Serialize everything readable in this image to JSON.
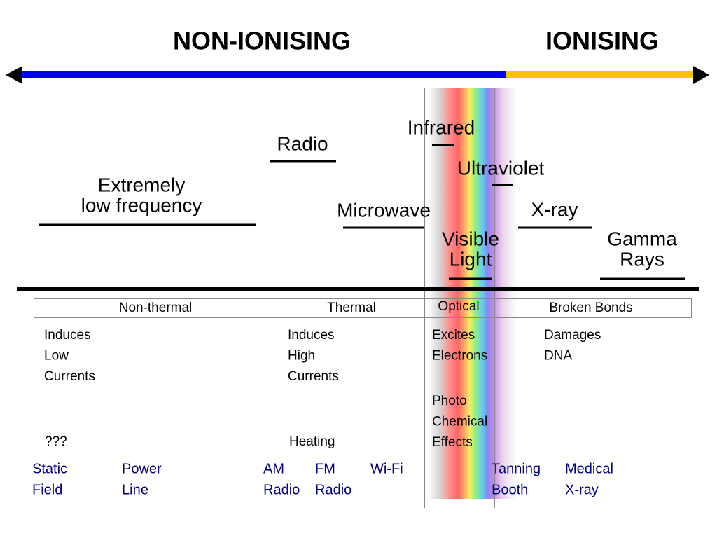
{
  "header": {
    "non_ionising": "NON-IONISING",
    "ionising": "IONISING"
  },
  "bands": [
    {
      "lines": [
        "Extremely",
        "low frequency"
      ]
    },
    {
      "lines": [
        "Radio"
      ]
    },
    {
      "lines": [
        "Infrared"
      ]
    },
    {
      "lines": [
        "Ultraviolet"
      ]
    },
    {
      "lines": [
        "Microwave"
      ]
    },
    {
      "lines": [
        "X-ray"
      ]
    },
    {
      "lines": [
        "Visible",
        "Light"
      ]
    },
    {
      "lines": [
        "Gamma",
        "Rays"
      ]
    }
  ],
  "effects": [
    "Non-thermal",
    "Thermal",
    "Optical",
    "Broken Bonds"
  ],
  "descriptions": [
    {
      "lines": [
        "Induces",
        "Low",
        "Currents"
      ]
    },
    {
      "lines": [
        "???"
      ]
    },
    {
      "lines": [
        "Induces",
        "High",
        "Currents"
      ]
    },
    {
      "lines": [
        "Heating"
      ]
    },
    {
      "lines": [
        "Excites",
        "Electrons"
      ]
    },
    {
      "lines": [
        "Photo",
        "Chemical",
        "Effects"
      ]
    },
    {
      "lines": [
        "Damages",
        "DNA"
      ]
    }
  ],
  "examples": [
    {
      "lines": [
        "Static",
        "Field"
      ]
    },
    {
      "lines": [
        "Power",
        "Line"
      ]
    },
    {
      "lines": [
        "AM",
        "Radio"
      ]
    },
    {
      "lines": [
        "FM",
        "Radio"
      ]
    },
    {
      "lines": [
        "Wi-Fi"
      ]
    },
    {
      "lines": [
        "Tanning",
        "Booth"
      ]
    },
    {
      "lines": [
        "Medical",
        "X-ray"
      ]
    }
  ]
}
